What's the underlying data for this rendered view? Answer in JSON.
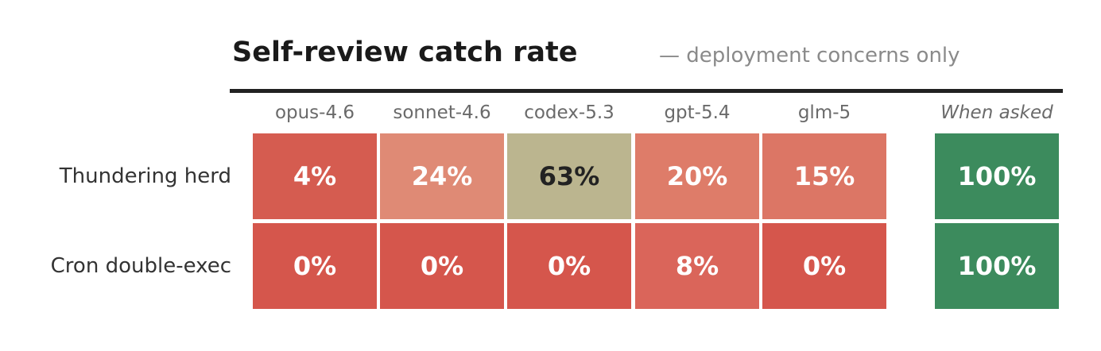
{
  "chart_data": {
    "type": "heatmap",
    "title": "Self-review catch rate",
    "subtitle": "— deployment concerns only",
    "columns": [
      "opus-4.6",
      "sonnet-4.6",
      "codex-5.3",
      "gpt-5.4",
      "glm-5"
    ],
    "extra_column": "When asked",
    "rows": [
      {
        "label": "Thundering herd",
        "values": [
          4,
          24,
          63,
          20,
          15
        ],
        "display": [
          "4%",
          "24%",
          "63%",
          "20%",
          "15%"
        ],
        "extra_value": 100,
        "extra_display": "100%"
      },
      {
        "label": "Cron double-exec",
        "values": [
          0,
          0,
          0,
          8,
          0
        ],
        "display": [
          "0%",
          "0%",
          "0%",
          "8%",
          "0%"
        ],
        "extra_value": 100,
        "extra_display": "100%"
      }
    ],
    "value_unit": "%",
    "cell_colors": [
      [
        "#d55c50",
        "#df8a75",
        "#bbb58f",
        "#de7c69",
        "#dc7665"
      ],
      [
        "#d5564c",
        "#d5564c",
        "#d5564c",
        "#da655a",
        "#d5564c"
      ]
    ],
    "extra_color": "#3c8b5d",
    "dark_text_cells": [
      [
        0,
        2
      ]
    ]
  }
}
